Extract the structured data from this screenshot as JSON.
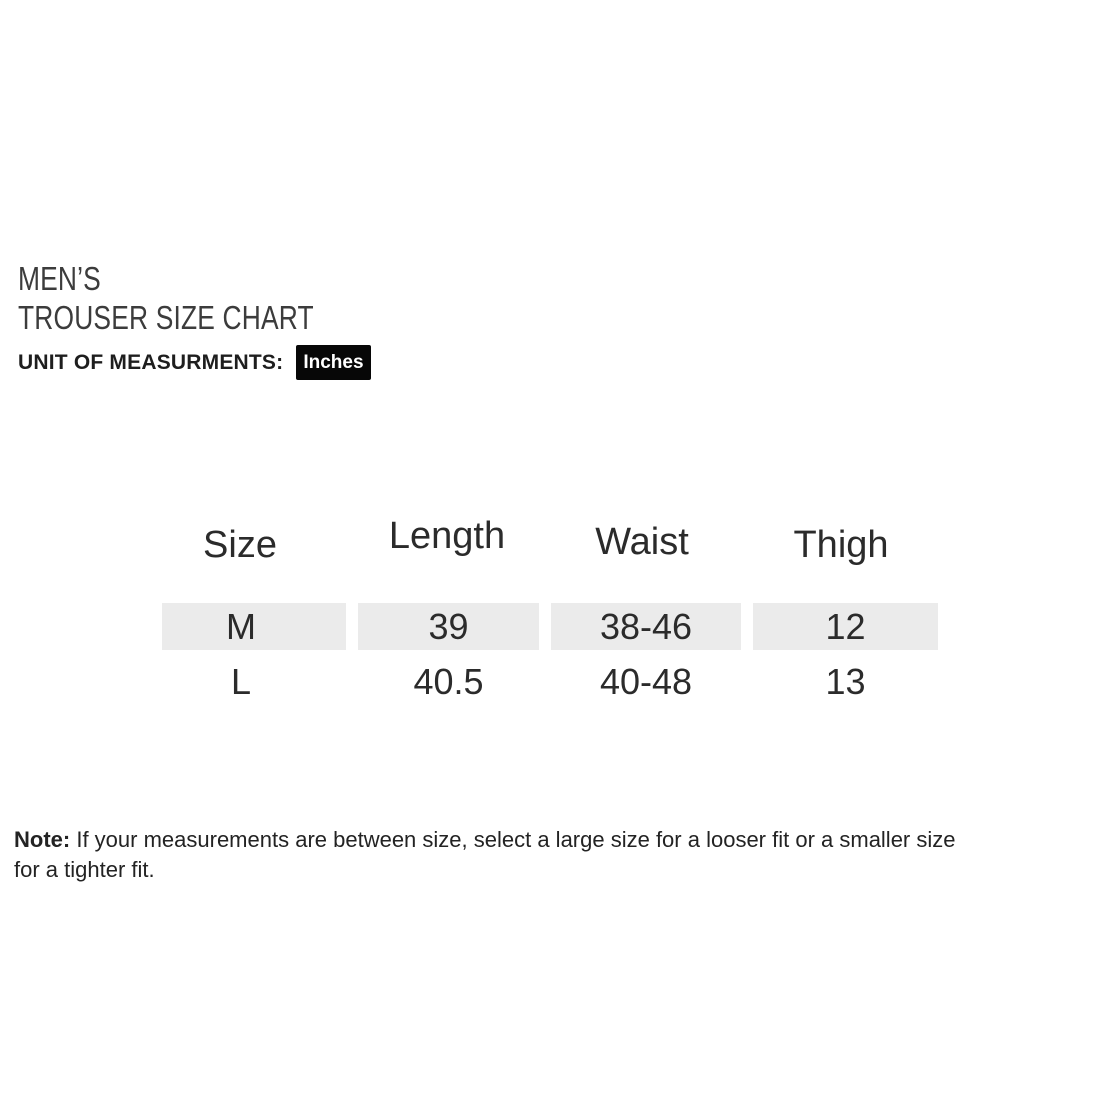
{
  "header": {
    "title_line1": "MEN’S",
    "title_line2": "TROUSER SIZE CHART",
    "unit_label": "UNIT OF MEASURMENTS:"
  },
  "chart_data": {
    "type": "table",
    "title": "MEN’S TROUSER SIZE CHART",
    "unit": "Inches",
    "columns": [
      "Size",
      "Length",
      "Waist",
      "Thigh"
    ],
    "rows": [
      [
        "M",
        "39",
        "38-46",
        "12"
      ],
      [
        "L",
        "40.5",
        "40-48",
        "13"
      ]
    ],
    "highlighted_row": "M"
  },
  "note": {
    "label": "Note:",
    "line1": "If your measurements are between size, select a large size for a looser fit or a smaller size",
    "line2": "for a tighter fit."
  },
  "colors": {
    "background": "#ffffff",
    "row_highlight": "#ebebeb",
    "badge_bg": "#070707",
    "badge_text": "#ffffff",
    "text": "#2b2b2b"
  }
}
